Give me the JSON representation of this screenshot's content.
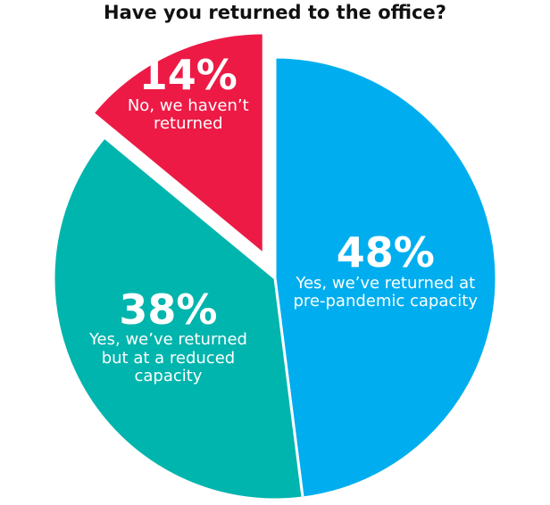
{
  "chart_data": {
    "type": "pie",
    "title": "Have you returned to the office?",
    "categories": [
      "Yes, we’ve returned at pre-pandemic capacity",
      "Yes, we’ve returned but at a reduced capacity",
      "No, we haven’t returned"
    ],
    "values": [
      48,
      38,
      14
    ],
    "value_labels": [
      "48%",
      "38%",
      "14%"
    ],
    "colors": [
      "#00aeef",
      "#00b5ad",
      "#ed1a45"
    ]
  }
}
